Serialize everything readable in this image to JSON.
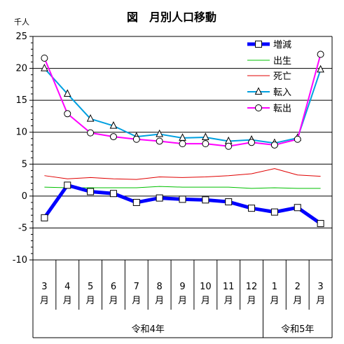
{
  "chart_data": {
    "type": "line",
    "title": "図　月別人口移動",
    "unit_label": "千人",
    "categories": [
      {
        "num": "3",
        "suffix": "月"
      },
      {
        "num": "4",
        "suffix": "月"
      },
      {
        "num": "5",
        "suffix": "月"
      },
      {
        "num": "6",
        "suffix": "月"
      },
      {
        "num": "7",
        "suffix": "月"
      },
      {
        "num": "8",
        "suffix": "月"
      },
      {
        "num": "9",
        "suffix": "月"
      },
      {
        "num": "10",
        "suffix": "月"
      },
      {
        "num": "11",
        "suffix": "月"
      },
      {
        "num": "12",
        "suffix": "月"
      },
      {
        "num": "1",
        "suffix": "月"
      },
      {
        "num": "2",
        "suffix": "月"
      },
      {
        "num": "3",
        "suffix": "月"
      }
    ],
    "groups": [
      {
        "label": "令和4年",
        "start": 0,
        "end": 9
      },
      {
        "label": "令和5年",
        "start": 10,
        "end": 12
      }
    ],
    "ylim": [
      -10,
      25
    ],
    "yticks": [
      25,
      20,
      15,
      10,
      5,
      0,
      -5,
      -10
    ],
    "grid": true,
    "legend_position": "top-right",
    "series": [
      {
        "name": "増減",
        "color": "#0000ff",
        "width": 5,
        "marker": "square",
        "values": [
          -3.4,
          1.7,
          0.7,
          0.4,
          -1.0,
          -0.3,
          -0.5,
          -0.6,
          -0.9,
          -1.9,
          -2.5,
          -1.8,
          -4.3
        ]
      },
      {
        "name": "出生",
        "color": "#00c000",
        "width": 1,
        "marker": "none",
        "values": [
          1.4,
          1.3,
          1.3,
          1.3,
          1.3,
          1.5,
          1.4,
          1.4,
          1.4,
          1.2,
          1.3,
          1.2,
          1.2
        ]
      },
      {
        "name": "死亡",
        "color": "#e00000",
        "width": 1,
        "marker": "none",
        "values": [
          3.2,
          2.7,
          2.9,
          2.7,
          2.6,
          3.0,
          2.9,
          3.0,
          3.2,
          3.5,
          4.3,
          3.3,
          3.1
        ]
      },
      {
        "name": "転入",
        "color": "#00a0e0",
        "width": 2,
        "marker": "triangle",
        "values": [
          20.0,
          16.0,
          12.1,
          11.0,
          9.3,
          9.7,
          9.1,
          9.2,
          8.6,
          8.8,
          8.3,
          9.1,
          19.8
        ]
      },
      {
        "name": "転出",
        "color": "#ff00ff",
        "width": 2,
        "marker": "circle",
        "values": [
          21.6,
          12.9,
          9.9,
          9.3,
          8.9,
          8.6,
          8.2,
          8.2,
          7.8,
          8.4,
          8.0,
          8.9,
          22.2
        ]
      }
    ]
  }
}
